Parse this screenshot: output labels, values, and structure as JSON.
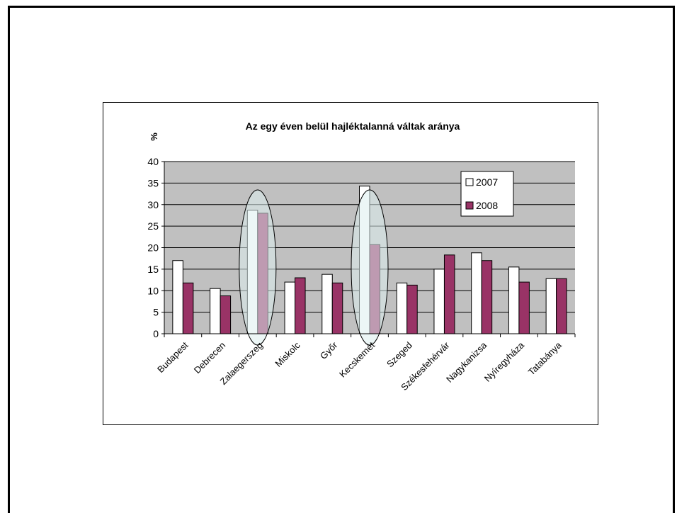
{
  "chart_data": {
    "type": "bar",
    "title": "Az egy éven belül hajléktalanná váltak aránya",
    "ylabel": "%",
    "xlabel": "",
    "ylim": [
      0,
      40
    ],
    "yticks": [
      0,
      5,
      10,
      15,
      20,
      25,
      30,
      35,
      40
    ],
    "grid": true,
    "legend_position": "top-right",
    "categories": [
      "Budapest",
      "Debrecen",
      "Zalaegerszeg",
      "Miskolc",
      "Győr",
      "Kecskemét",
      "Szeged",
      "Székesfehérvár",
      "Nagykanizsa",
      "Nyíregyháza",
      "Tatabánya"
    ],
    "series": [
      {
        "name": "2007",
        "values": [
          17,
          10.5,
          28.7,
          12,
          13.8,
          34.3,
          11.8,
          15,
          18.8,
          15.5,
          12.8
        ]
      },
      {
        "name": "2008",
        "values": [
          11.8,
          8.8,
          28,
          13,
          11.8,
          20.7,
          11.3,
          18.3,
          17,
          12,
          12.8
        ]
      }
    ],
    "highlighted_categories": [
      "Zalaegerszeg",
      "Kecskemét"
    ]
  },
  "colors": {
    "plot_background": "#C0C0C0",
    "series_2007": "#FFFFFF",
    "series_2008": "#993366",
    "highlight_fill": "#DDEEEE",
    "axis": "#000000"
  }
}
